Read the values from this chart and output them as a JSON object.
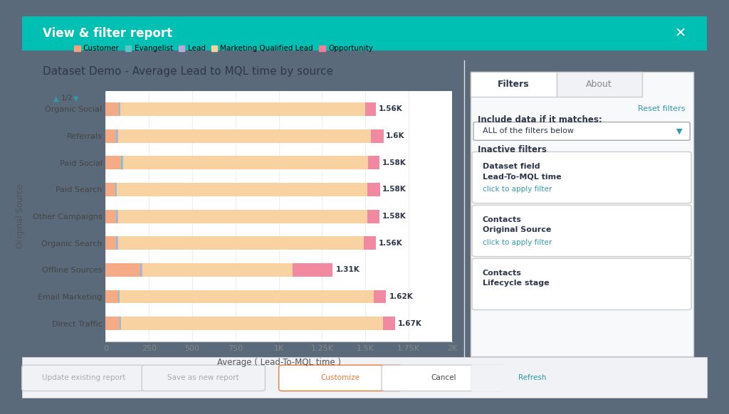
{
  "title": "Dataset Demo - Average Lead to MQL time by source",
  "dialog_title": "View & filter report",
  "categories": [
    "Direct Traffic",
    "Email Marketing",
    "Offline Sources",
    "Organic Search",
    "Other Campaigns",
    "Paid Search",
    "Paid Social",
    "Referrals",
    "Organic Social"
  ],
  "ylabel": "Original Source",
  "xlabel": "Average ( Lead-To-MQL time )",
  "total_labels": [
    "1.67K",
    "1.62K",
    "1.31K",
    "1.56K",
    "1.58K",
    "1.58K",
    "1.58K",
    "1.6K",
    "1.56K"
  ],
  "total_values": [
    1670,
    1620,
    1310,
    1560,
    1580,
    1580,
    1580,
    1600,
    1560
  ],
  "segments": {
    "Customer": [
      80,
      70,
      200,
      60,
      60,
      55,
      90,
      60,
      75
    ],
    "Evangelist": [
      5,
      5,
      5,
      5,
      5,
      5,
      5,
      5,
      5
    ],
    "Lead": [
      5,
      5,
      5,
      5,
      5,
      5,
      5,
      5,
      5
    ],
    "Marketing Qualified Lead": [
      1510,
      1470,
      870,
      1420,
      1440,
      1445,
      1415,
      1460,
      1415
    ],
    "Opportunity": [
      70,
      70,
      230,
      70,
      70,
      75,
      65,
      75,
      60
    ]
  },
  "colors": {
    "Customer": "#F4A47C",
    "Evangelist": "#5BC8C5",
    "Lead": "#B8A9D9",
    "Marketing Qualified Lead": "#F9CF9A",
    "Opportunity": "#F08098"
  },
  "legend_order": [
    "Customer",
    "Evangelist",
    "Lead",
    "Marketing Qualified Lead",
    "Opportunity"
  ],
  "xlim": [
    0,
    2000
  ],
  "xticks": [
    0,
    250,
    500,
    750,
    1000,
    1250,
    1500,
    1750,
    2000
  ],
  "xticklabels": [
    "0",
    "250",
    "500",
    "750",
    "1K",
    "1.25K",
    "1.5K",
    "1.75K",
    "2K"
  ],
  "bg_color": "#f5f7fa",
  "chart_bg": "#ffffff",
  "bar_height": 0.5,
  "filter_cards": [
    {
      "title": "Dataset field",
      "subtitle": "Lead-To-MQL time",
      "action": "click to apply filter"
    },
    {
      "title": "Contacts",
      "subtitle": "Original Source",
      "action": "click to apply filter"
    },
    {
      "title": "Contacts",
      "subtitle": "Lifecycle stage",
      "action": ""
    }
  ],
  "dialog_header_color": "#00BFB3",
  "header_text_color": "#ffffff",
  "outer_bg": "#5a6a7a"
}
